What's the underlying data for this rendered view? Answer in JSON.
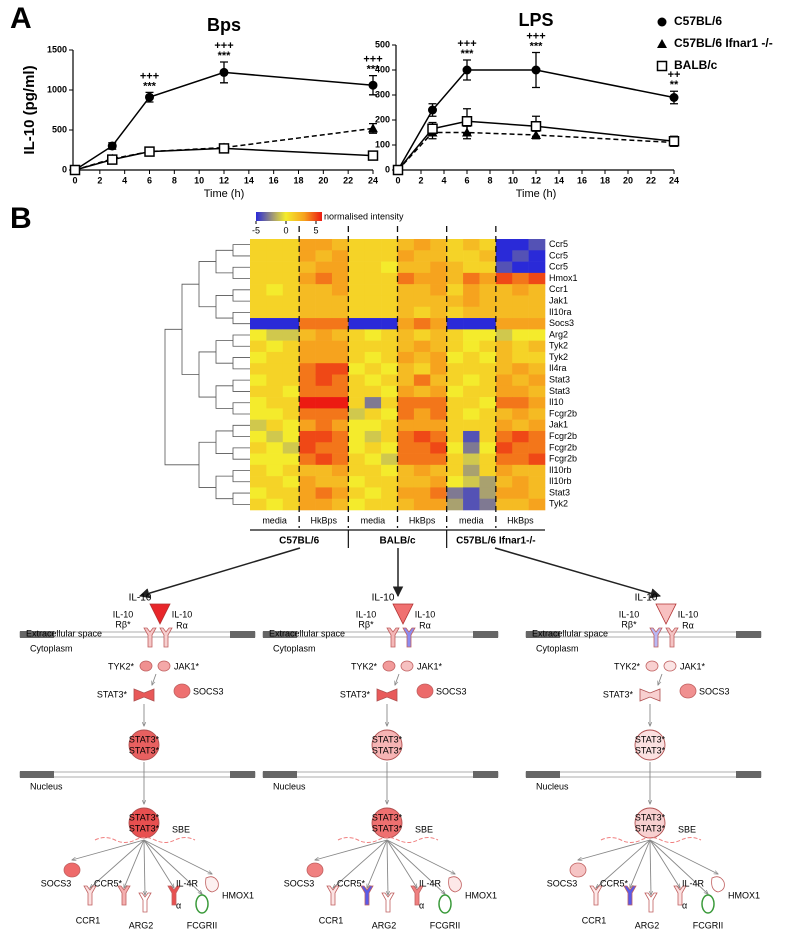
{
  "panel_labels": {
    "a": "A",
    "b": "B"
  },
  "chart_data": [
    {
      "type": "line",
      "title": "Bps",
      "xlabel": "Time (h)",
      "ylabel": "IL-10 (pg/ml)",
      "x": [
        0,
        3,
        6,
        12,
        24
      ],
      "xlim": [
        0,
        24
      ],
      "xticks": [
        0,
        2,
        4,
        6,
        8,
        10,
        12,
        14,
        16,
        18,
        20,
        22,
        24
      ],
      "ylim": [
        0,
        1500
      ],
      "yticks": [
        0,
        500,
        1000,
        1500
      ],
      "legend": "none",
      "series": [
        {
          "name": "C57BL/6",
          "color": "#000000",
          "marker": "circle",
          "dash": false,
          "values": [
            0,
            300,
            910,
            1220,
            1060
          ],
          "errors": [
            15,
            40,
            60,
            130,
            120
          ]
        },
        {
          "name": "C57BL/6 Ifnar1 -/-",
          "color": "#000000",
          "marker": "triangle",
          "dash": true,
          "values": [
            0,
            140,
            230,
            280,
            520
          ],
          "errors": [
            10,
            30,
            30,
            30,
            60
          ]
        },
        {
          "name": "BALB/c",
          "color": "#000000",
          "marker": "square",
          "dash": false,
          "values": [
            0,
            130,
            230,
            270,
            180
          ],
          "errors": [
            10,
            20,
            30,
            30,
            20
          ]
        }
      ],
      "annotations": [
        {
          "x": 6,
          "text": [
            "+++",
            "***"
          ]
        },
        {
          "x": 12,
          "text": [
            "+++",
            "***"
          ]
        },
        {
          "x": 24,
          "text": [
            "+++",
            "***"
          ]
        }
      ]
    },
    {
      "type": "line",
      "title": "LPS",
      "xlabel": "Time (h)",
      "x": [
        0,
        3,
        6,
        12,
        24
      ],
      "xlim": [
        0,
        24
      ],
      "xticks": [
        0,
        2,
        4,
        6,
        8,
        10,
        12,
        14,
        16,
        18,
        20,
        22,
        24
      ],
      "ylim": [
        0,
        500
      ],
      "yticks": [
        0,
        100,
        200,
        300,
        400,
        500
      ],
      "legend": "right",
      "series": [
        {
          "name": "C57BL/6",
          "color": "#000000",
          "marker": "circle",
          "dash": false,
          "values": [
            0,
            240,
            400,
            400,
            290
          ],
          "errors": [
            8,
            25,
            40,
            70,
            25
          ]
        },
        {
          "name": "C57BL/6 Ifnar1 -/-",
          "color": "#000000",
          "marker": "triangle",
          "dash": true,
          "values": [
            0,
            150,
            150,
            140,
            110
          ],
          "errors": [
            8,
            25,
            25,
            15,
            15
          ]
        },
        {
          "name": "BALB/c",
          "color": "#000000",
          "marker": "square",
          "dash": false,
          "values": [
            0,
            165,
            195,
            175,
            115
          ],
          "errors": [
            8,
            25,
            50,
            40,
            20
          ]
        }
      ],
      "annotations": [
        {
          "x": 6,
          "text": [
            "+++",
            "***"
          ]
        },
        {
          "x": 12,
          "text": [
            "+++",
            "***"
          ]
        },
        {
          "x": 24,
          "text": [
            "++",
            "**"
          ]
        }
      ]
    },
    {
      "type": "heatmap",
      "colorbar_label": "normalised intensity",
      "clim": [
        -5,
        6
      ],
      "cticks": [
        -5,
        0,
        5
      ],
      "rows": [
        "Ccr5",
        "Ccr5",
        "Ccr5",
        "Hmox1",
        "Ccr1",
        "Jak1",
        "Il10ra",
        "Socs3",
        "Arg2",
        "Tyk2",
        "Tyk2",
        "Il4ra",
        "Stat3",
        "Stat3",
        "Il10",
        "Fcgr2b",
        "Jak1",
        "Fcgr2b",
        "Fcgr2b",
        "Fcgr2b",
        "Il10rb",
        "Il10rb",
        "Stat3",
        "Tyk2"
      ],
      "groups": [
        "media",
        "HkBps",
        "media",
        "HkBps",
        "media",
        "HkBps"
      ],
      "strains": [
        "C57BL/6",
        "BALB/c",
        "C57BL/6 Ifnar1-/-"
      ],
      "values": [
        [
          1,
          1,
          1,
          3,
          3,
          2,
          1,
          1,
          1,
          2,
          3,
          2,
          1,
          2,
          1,
          -5,
          -5,
          -4
        ],
        [
          1,
          1,
          1,
          3,
          2,
          3,
          1,
          1,
          1,
          3,
          2,
          2,
          1,
          1,
          2,
          -5,
          -4,
          -5
        ],
        [
          1,
          1,
          1,
          2,
          3,
          3,
          1,
          1,
          0,
          2,
          2,
          3,
          2,
          1,
          1,
          -4,
          -5,
          -5
        ],
        [
          1,
          1,
          1,
          3,
          4,
          3,
          1,
          1,
          1,
          4,
          3,
          3,
          2,
          4,
          3,
          5,
          4,
          5
        ],
        [
          1,
          0,
          1,
          2,
          2,
          3,
          1,
          1,
          1,
          2,
          2,
          3,
          1,
          3,
          2,
          2,
          3,
          2
        ],
        [
          1,
          1,
          1,
          2,
          2,
          2,
          1,
          1,
          1,
          2,
          2,
          2,
          2,
          3,
          2,
          2,
          2,
          2
        ],
        [
          1,
          1,
          1,
          2,
          2,
          2,
          1,
          1,
          1,
          2,
          1,
          2,
          1,
          2,
          2,
          2,
          2,
          2
        ],
        [
          -5,
          -5,
          -5,
          4,
          4,
          4,
          -5,
          -5,
          -5,
          3,
          4,
          3,
          -5,
          -5,
          -5,
          3,
          3,
          3
        ],
        [
          0,
          -1,
          -1,
          2,
          3,
          2,
          1,
          0,
          1,
          2,
          1,
          2,
          1,
          0,
          0,
          -1,
          0,
          0
        ],
        [
          1,
          0,
          1,
          3,
          3,
          3,
          1,
          1,
          1,
          2,
          3,
          2,
          1,
          0,
          1,
          2,
          1,
          2
        ],
        [
          0,
          1,
          1,
          3,
          3,
          3,
          1,
          0,
          1,
          3,
          2,
          3,
          0,
          1,
          0,
          2,
          1,
          1
        ],
        [
          1,
          1,
          1,
          4,
          5,
          5,
          0,
          1,
          0,
          2,
          1,
          3,
          1,
          1,
          1,
          2,
          3,
          2
        ],
        [
          0,
          1,
          1,
          4,
          5,
          4,
          1,
          0,
          1,
          2,
          4,
          2,
          1,
          0,
          1,
          3,
          2,
          3
        ],
        [
          1,
          1,
          0,
          4,
          4,
          4,
          1,
          1,
          0,
          3,
          2,
          3,
          0,
          1,
          1,
          3,
          3,
          2
        ],
        [
          0,
          1,
          1,
          6,
          6,
          6,
          1,
          -3,
          1,
          4,
          4,
          4,
          1,
          1,
          0,
          4,
          4,
          3
        ],
        [
          0,
          0,
          1,
          4,
          4,
          4,
          -1,
          1,
          0,
          4,
          3,
          4,
          1,
          0,
          1,
          2,
          3,
          2
        ],
        [
          -1,
          1,
          0,
          3,
          4,
          3,
          0,
          0,
          1,
          3,
          3,
          3,
          1,
          1,
          1,
          3,
          2,
          3
        ],
        [
          0,
          -1,
          0,
          5,
          5,
          4,
          0,
          -1,
          1,
          4,
          5,
          4,
          1,
          -4,
          1,
          4,
          5,
          4
        ],
        [
          1,
          0,
          -1,
          5,
          4,
          4,
          0,
          1,
          0,
          4,
          4,
          5,
          0,
          -3,
          0,
          5,
          4,
          4
        ],
        [
          0,
          0,
          0,
          4,
          5,
          4,
          1,
          0,
          -1,
          4,
          4,
          4,
          1,
          -1,
          1,
          4,
          4,
          5
        ],
        [
          1,
          0,
          1,
          2,
          2,
          3,
          1,
          1,
          0,
          2,
          3,
          2,
          1,
          -2,
          1,
          3,
          2,
          2
        ],
        [
          1,
          1,
          0,
          3,
          2,
          2,
          0,
          1,
          1,
          2,
          2,
          3,
          0,
          -1,
          -2,
          2,
          3,
          2
        ],
        [
          0,
          1,
          1,
          3,
          4,
          3,
          1,
          0,
          1,
          3,
          3,
          4,
          -3,
          -4,
          -2,
          3,
          3,
          2
        ],
        [
          1,
          0,
          1,
          3,
          3,
          2,
          0,
          1,
          1,
          2,
          3,
          3,
          -2,
          -4,
          -3,
          2,
          2,
          3
        ]
      ]
    }
  ],
  "pathway": {
    "ligand": "IL-10",
    "receptor_b": [
      "IL-10",
      "Rβ*"
    ],
    "receptor_a": [
      "IL-10",
      "Rα"
    ],
    "compartments": [
      "Extracellular space",
      "Cytoplasm",
      "Nucleus"
    ],
    "kinases": [
      "TYK2*",
      "JAK1*"
    ],
    "stat": "STAT3*",
    "socs": "SOCS3",
    "dimer": [
      "STAT3*",
      "STAT3*"
    ],
    "element": "SBE",
    "targets": [
      "SOCS3",
      "CCR1",
      "CCR5*",
      "ARG2",
      [
        "IL-4R",
        "α"
      ],
      "FCGRII",
      "HMOX1"
    ]
  }
}
